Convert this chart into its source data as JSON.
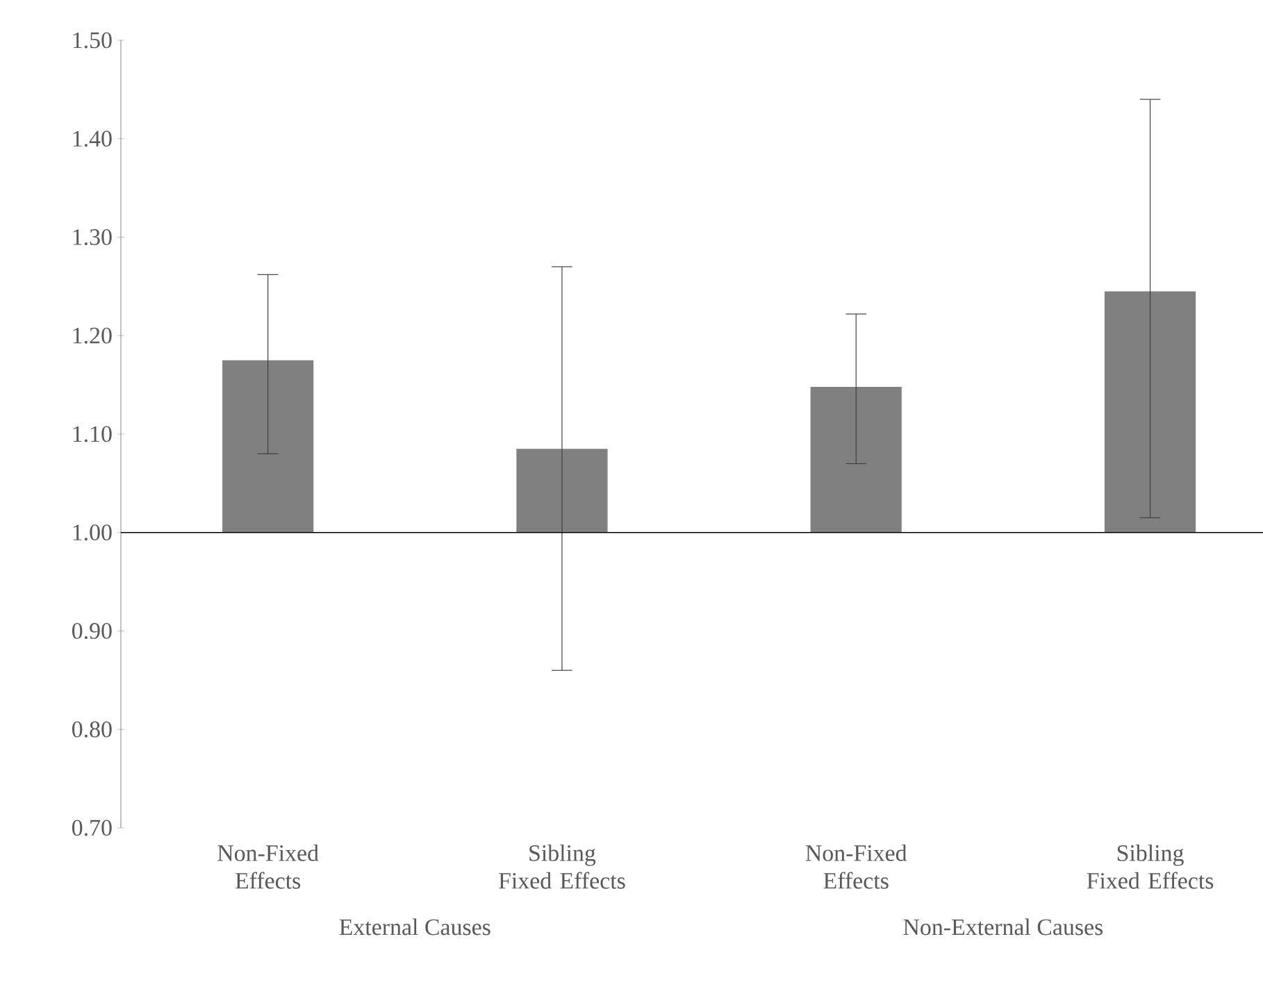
{
  "chart_data": {
    "type": "bar",
    "categories": [
      "Non-Fixed Effects",
      "Sibling Fixed Effects",
      "Non-Fixed Effects",
      "Sibling Fixed Effects"
    ],
    "base": [
      1,
      1,
      1,
      1
    ],
    "values": [
      0.175,
      0.085,
      0.148,
      0.245
    ],
    "errors": [
      [
        1.08,
        1.262
      ],
      [
        0.86,
        1.27
      ],
      [
        1.07,
        1.222
      ],
      [
        1.015,
        1.44
      ]
    ],
    "color": "#808080",
    "ylim": [
      0.7,
      1.5
    ],
    "yticks": [
      {
        "value": 0.7,
        "label": "0.70"
      },
      {
        "value": 0.8,
        "label": "0.80"
      },
      {
        "value": 0.9,
        "label": "0.90"
      },
      {
        "value": 1.0,
        "label": "1.00"
      },
      {
        "value": 1.1,
        "label": "1.10"
      },
      {
        "value": 1.2,
        "label": "1.20"
      },
      {
        "value": 1.3,
        "label": "1.30"
      },
      {
        "value": 1.4,
        "label": "1.40"
      },
      {
        "value": 1.5,
        "label": "1.50"
      }
    ],
    "ref_lines": [
      {
        "axis": "y",
        "value": 1
      }
    ],
    "annotations": [
      "External Causes",
      "Non-External Causes"
    ]
  }
}
